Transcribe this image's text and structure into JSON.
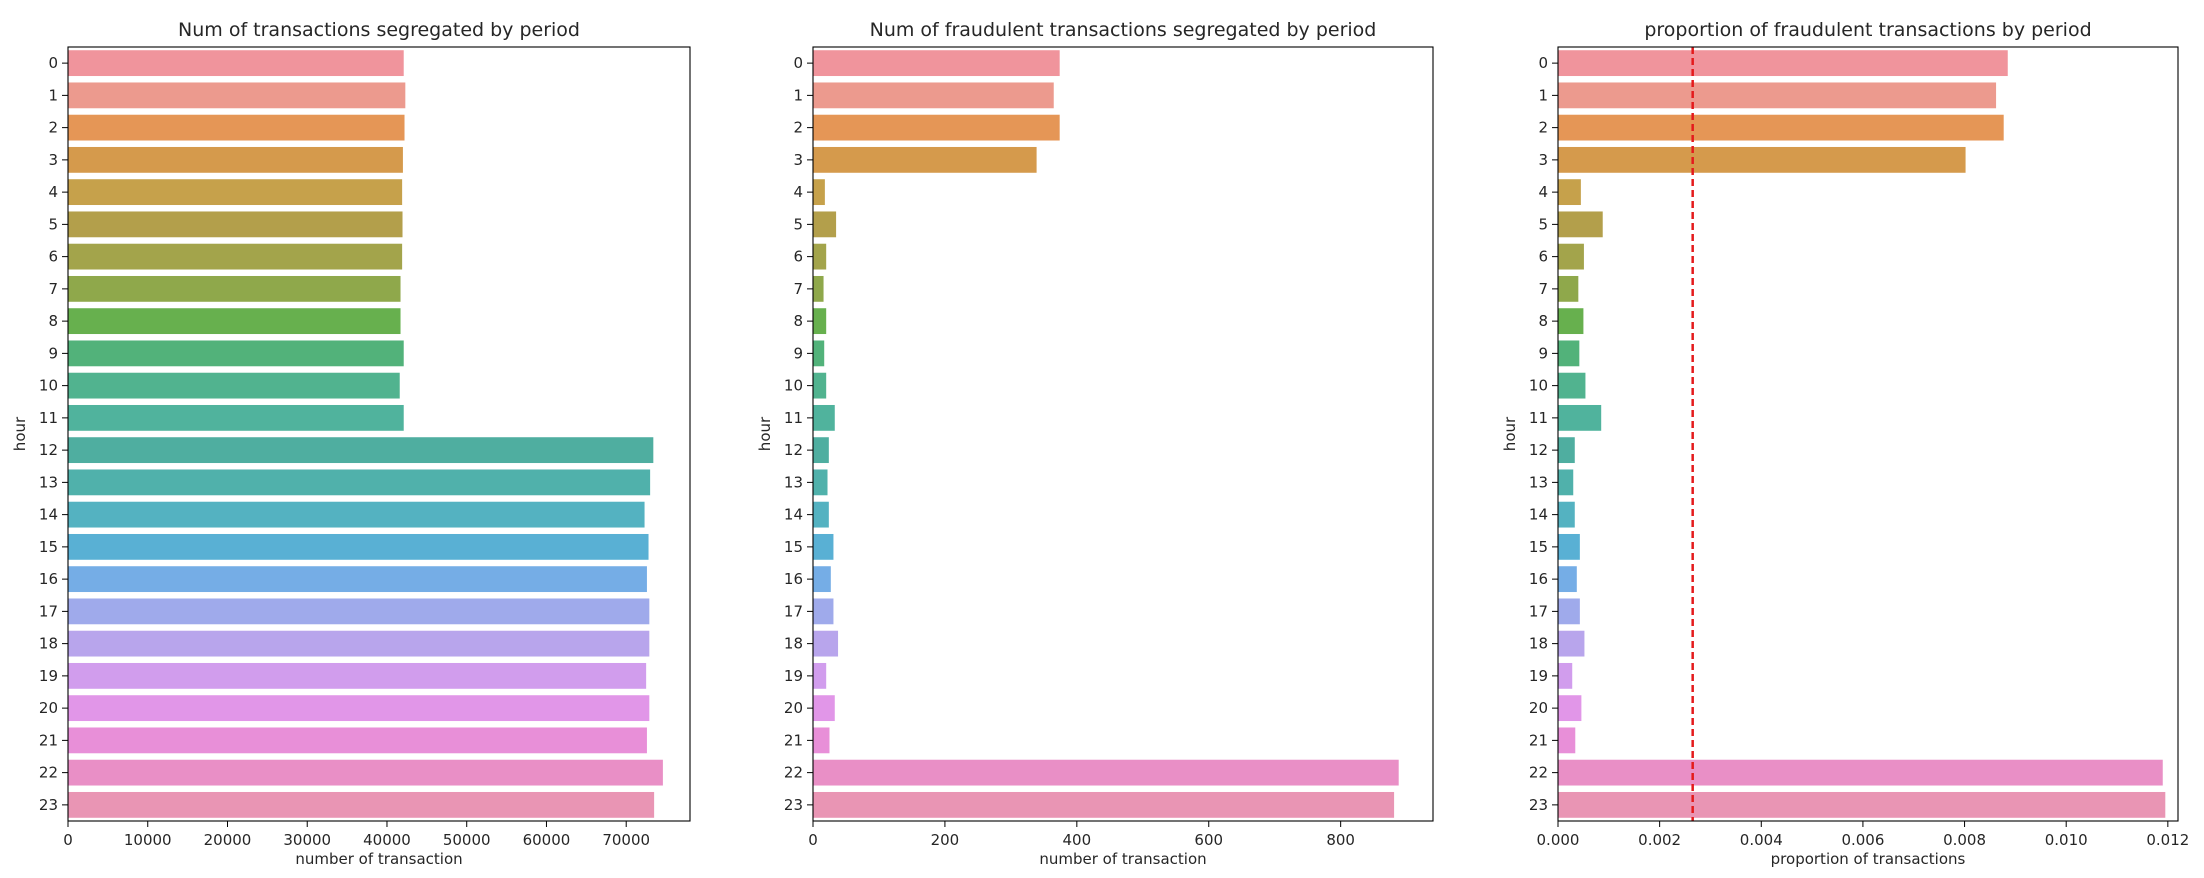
{
  "chart_data": [
    {
      "type": "bar",
      "orientation": "horizontal",
      "title": "Num of transactions segregated by period",
      "xlabel": "number of transaction",
      "ylabel": "hour",
      "categories": [
        "0",
        "1",
        "2",
        "3",
        "4",
        "5",
        "6",
        "7",
        "8",
        "9",
        "10",
        "11",
        "12",
        "13",
        "14",
        "15",
        "16",
        "17",
        "18",
        "19",
        "20",
        "21",
        "22",
        "23"
      ],
      "values": [
        42100,
        42300,
        42200,
        42000,
        41900,
        41950,
        41900,
        41700,
        41700,
        42100,
        41600,
        42100,
        73400,
        73000,
        72300,
        72800,
        72600,
        72900,
        72900,
        72500,
        72900,
        72600,
        74600,
        73500
      ],
      "xlim": [
        0,
        78000
      ],
      "xticks": [
        0,
        10000,
        20000,
        30000,
        40000,
        50000,
        60000,
        70000
      ],
      "grid": false,
      "legend": "none"
    },
    {
      "type": "bar",
      "orientation": "horizontal",
      "title": "Num of fraudulent transactions segregated by period",
      "xlabel": "number of transaction",
      "ylabel": "hour",
      "categories": [
        "0",
        "1",
        "2",
        "3",
        "4",
        "5",
        "6",
        "7",
        "8",
        "9",
        "10",
        "11",
        "12",
        "13",
        "14",
        "15",
        "16",
        "17",
        "18",
        "19",
        "20",
        "21",
        "22",
        "23"
      ],
      "values": [
        374,
        365,
        374,
        339,
        18,
        35,
        20,
        16,
        20,
        17,
        20,
        33,
        24,
        22,
        24,
        31,
        27,
        31,
        38,
        20,
        33,
        25,
        888,
        881
      ],
      "xlim": [
        0,
        940
      ],
      "xticks": [
        0,
        200,
        400,
        600,
        800
      ],
      "grid": false,
      "legend": "none"
    },
    {
      "type": "bar",
      "orientation": "horizontal",
      "title": "proportion of fraudulent transactions by period",
      "xlabel": "proportion of transactions",
      "ylabel": "hour",
      "categories": [
        "0",
        "1",
        "2",
        "3",
        "4",
        "5",
        "6",
        "7",
        "8",
        "9",
        "10",
        "11",
        "12",
        "13",
        "14",
        "15",
        "16",
        "17",
        "18",
        "19",
        "20",
        "21",
        "22",
        "23"
      ],
      "values": [
        0.00885,
        0.00862,
        0.00877,
        0.00802,
        0.00045,
        0.00088,
        0.00051,
        0.0004,
        0.0005,
        0.00042,
        0.00054,
        0.00085,
        0.00033,
        0.0003,
        0.00033,
        0.00043,
        0.00037,
        0.00043,
        0.00052,
        0.00028,
        0.00046,
        0.00034,
        0.0119,
        0.01195
      ],
      "xlim": [
        0,
        0.0122
      ],
      "xticks": [
        0.0,
        0.002,
        0.004,
        0.006,
        0.008,
        0.01,
        0.012
      ],
      "xtick_labels": [
        "0.000",
        "0.002",
        "0.004",
        "0.006",
        "0.008",
        "0.010",
        "0.012"
      ],
      "reference_line": {
        "x": 0.00265,
        "color": "#e41a1c",
        "style": "dashed"
      },
      "grid": false,
      "legend": "none"
    }
  ],
  "bar_colors": [
    "#f0949c",
    "#ec9a8e",
    "#e59656",
    "#d59a4c",
    "#c6a14b",
    "#b39f4b",
    "#a3a44b",
    "#8fa84b",
    "#67b04e",
    "#52b27a",
    "#51b38f",
    "#50b39d",
    "#4faea0",
    "#50b1ab",
    "#54b2c1",
    "#59b0d4",
    "#75ade6",
    "#9faaeb",
    "#b8a5ec",
    "#d19ded",
    "#e196e8",
    "#e88fd8",
    "#e98fc6",
    "#e995b4"
  ]
}
